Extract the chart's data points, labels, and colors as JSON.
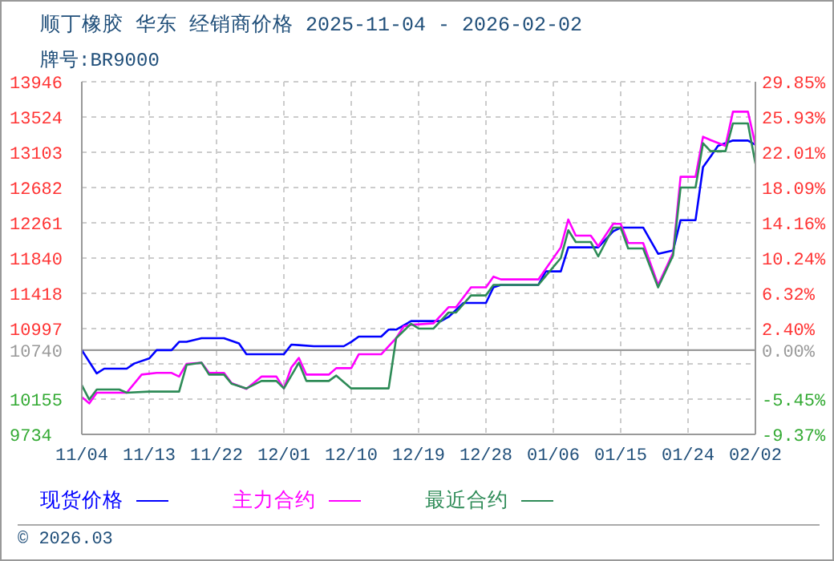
{
  "chart_data": {
    "type": "line",
    "title": "顺丁橡胶 华东 经销商价格 2025-11-04 - 2026-02-02",
    "subtitle": "牌号:BR9000",
    "xlim": [
      "2025-11-04",
      "2026-02-02"
    ],
    "xticks": [
      {
        "value": "2025-11-04",
        "label": "11/04"
      },
      {
        "value": "2025-11-13",
        "label": "11/13"
      },
      {
        "value": "2025-11-22",
        "label": "11/22"
      },
      {
        "value": "2025-12-01",
        "label": "12/01"
      },
      {
        "value": "2025-12-10",
        "label": "12/10"
      },
      {
        "value": "2025-12-19",
        "label": "12/19"
      },
      {
        "value": "2025-12-28",
        "label": "12/28"
      },
      {
        "value": "2026-01-06",
        "label": "01/06"
      },
      {
        "value": "2026-01-15",
        "label": "01/15"
      },
      {
        "value": "2026-01-24",
        "label": "01/24"
      },
      {
        "value": "2026-02-02",
        "label": "02/02"
      }
    ],
    "ylim": [
      9734,
      13946
    ],
    "yticks": [
      9734,
      10155,
      {
        "value": 10576,
        "label": null
      },
      10740,
      10997,
      11418,
      11840,
      12261,
      12682,
      13103,
      13524,
      13946
    ],
    "y2lim": [
      -9.37,
      29.85
    ],
    "y2ticks": [
      {
        "value": -9.37,
        "label": "-9.37%"
      },
      {
        "value": -5.45,
        "label": "-5.45%"
      },
      {
        "value": 0,
        "label": "0.00%"
      },
      {
        "value": 2.4,
        "label": "2.40%"
      },
      {
        "value": 6.32,
        "label": "6.32%"
      },
      {
        "value": 10.24,
        "label": "10.24%"
      },
      {
        "value": 14.16,
        "label": "14.16%"
      },
      {
        "value": 18.09,
        "label": "18.09%"
      },
      {
        "value": 22.01,
        "label": "22.01%"
      },
      {
        "value": 25.93,
        "label": "25.93%"
      },
      {
        "value": 29.85,
        "label": "29.85%"
      }
    ],
    "ref_lines": [
      {
        "axis": "y",
        "value": 10740,
        "color": "#999999"
      }
    ],
    "grid": true,
    "legend": "bottom",
    "marker": "none",
    "line_style": "solid",
    "annotations": [
      "© 2026.03"
    ],
    "series": [
      {
        "name": "现货价格",
        "color": "#0000ff",
        "x": [
          "2025-11-04",
          "2025-11-06",
          "2025-11-07",
          "2025-11-10",
          "2025-11-11",
          "2025-11-13",
          "2025-11-14",
          "2025-11-16",
          "2025-11-17",
          "2025-11-18",
          "2025-11-20",
          "2025-11-23",
          "2025-11-25",
          "2025-11-26",
          "2025-12-01",
          "2025-12-02",
          "2025-12-03",
          "2025-12-05",
          "2025-12-09",
          "2025-12-10",
          "2025-12-11",
          "2025-12-14",
          "2025-12-15",
          "2025-12-16",
          "2025-12-18",
          "2025-12-22",
          "2025-12-23",
          "2025-12-25",
          "2025-12-28",
          "2025-12-29",
          "2025-12-30",
          "2026-01-04",
          "2026-01-05",
          "2026-01-07",
          "2026-01-08",
          "2026-01-12",
          "2026-01-14",
          "2026-01-15",
          "2026-01-18",
          "2026-01-20",
          "2026-01-22",
          "2026-01-23",
          "2026-01-25",
          "2026-01-26",
          "2026-01-27",
          "2026-01-28",
          "2026-01-30",
          "2026-02-01",
          "2026-02-02"
        ],
        "values": [
          10740,
          10462,
          10519,
          10519,
          10580,
          10640,
          10740,
          10740,
          10839,
          10839,
          10883,
          10883,
          10820,
          10691,
          10691,
          10806,
          10800,
          10787,
          10787,
          10839,
          10902,
          10902,
          10985,
          10985,
          11087,
          11087,
          11137,
          11304,
          11304,
          11490,
          11520,
          11520,
          11681,
          11681,
          11968,
          11968,
          12160,
          12204,
          12204,
          11891,
          11930,
          12293,
          12293,
          12926,
          13052,
          13180,
          13244,
          13244,
          13193
        ]
      },
      {
        "name": "主力合约",
        "color": "#ff00ff",
        "x": [
          "2025-11-04",
          "2025-11-05",
          "2025-11-06",
          "2025-11-10",
          "2025-11-12",
          "2025-11-14",
          "2025-11-16",
          "2025-11-17",
          "2025-11-18",
          "2025-11-20",
          "2025-11-21",
          "2025-11-23",
          "2025-11-24",
          "2025-11-26",
          "2025-11-28",
          "2025-11-30",
          "2025-12-01",
          "2025-12-02",
          "2025-12-03",
          "2025-12-04",
          "2025-12-07",
          "2025-12-08",
          "2025-12-10",
          "2025-12-11",
          "2025-12-14",
          "2025-12-16",
          "2025-12-17",
          "2025-12-18",
          "2025-12-21",
          "2025-12-23",
          "2025-12-24",
          "2025-12-26",
          "2025-12-28",
          "2025-12-29",
          "2025-12-30",
          "2026-01-04",
          "2026-01-07",
          "2026-01-08",
          "2026-01-09",
          "2026-01-11",
          "2026-01-12",
          "2026-01-14",
          "2026-01-15",
          "2026-01-16",
          "2026-01-18",
          "2026-01-20",
          "2026-01-22",
          "2026-01-23",
          "2026-01-25",
          "2026-01-26",
          "2026-01-27",
          "2026-01-29",
          "2026-01-30",
          "2026-02-01",
          "2026-02-02"
        ],
        "values": [
          10180,
          10104,
          10232,
          10232,
          10448,
          10468,
          10468,
          10424,
          10577,
          10590,
          10468,
          10468,
          10347,
          10277,
          10424,
          10424,
          10283,
          10533,
          10647,
          10448,
          10448,
          10525,
          10525,
          10691,
          10691,
          10883,
          11023,
          11042,
          11061,
          11253,
          11253,
          11490,
          11490,
          11618,
          11585,
          11585,
          11968,
          12300,
          12108,
          12108,
          11981,
          12249,
          12249,
          12019,
          12019,
          11520,
          11904,
          12810,
          12810,
          13289,
          13250,
          13180,
          13588,
          13588,
          13193
        ]
      },
      {
        "name": "最近合约",
        "color": "#2e8b57",
        "x": [
          "2025-11-04",
          "2025-11-05",
          "2025-11-06",
          "2025-11-09",
          "2025-11-10",
          "2025-11-13",
          "2025-11-17",
          "2025-11-18",
          "2025-11-20",
          "2025-11-21",
          "2025-11-23",
          "2025-11-24",
          "2025-11-26",
          "2025-11-28",
          "2025-11-30",
          "2025-12-01",
          "2025-12-03",
          "2025-12-04",
          "2025-12-07",
          "2025-12-08",
          "2025-12-10",
          "2025-12-15",
          "2025-12-16",
          "2025-12-18",
          "2025-12-19",
          "2025-12-21",
          "2025-12-23",
          "2025-12-24",
          "2025-12-26",
          "2025-12-28",
          "2025-12-29",
          "2026-01-04",
          "2026-01-07",
          "2026-01-08",
          "2026-01-09",
          "2026-01-11",
          "2026-01-12",
          "2026-01-14",
          "2026-01-15",
          "2026-01-16",
          "2026-01-18",
          "2026-01-20",
          "2026-01-22",
          "2026-01-23",
          "2026-01-25",
          "2026-01-26",
          "2026-01-27",
          "2026-01-29",
          "2026-01-30",
          "2026-02-01",
          "2026-02-02"
        ],
        "values": [
          10322,
          10150,
          10270,
          10270,
          10232,
          10245,
          10245,
          10564,
          10590,
          10448,
          10448,
          10340,
          10283,
          10372,
          10372,
          10283,
          10590,
          10372,
          10372,
          10436,
          10283,
          10283,
          10883,
          11055,
          10998,
          10998,
          11189,
          11189,
          11394,
          11394,
          11520,
          11520,
          11840,
          12172,
          12032,
          12032,
          11859,
          12204,
          12204,
          11955,
          11955,
          11490,
          11872,
          12682,
          12682,
          13212,
          13117,
          13117,
          13448,
          13448,
          12970
        ]
      }
    ]
  }
}
